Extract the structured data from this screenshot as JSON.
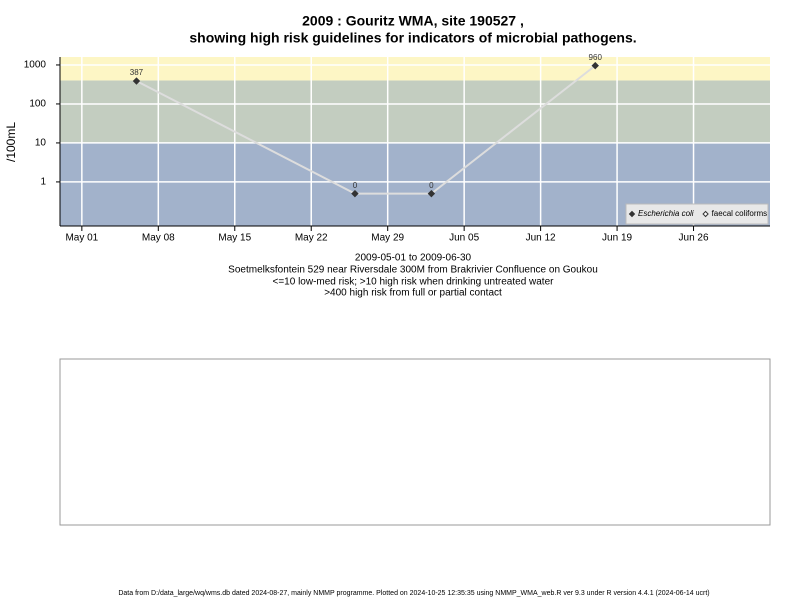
{
  "chart_data": {
    "type": "line",
    "title": "2009 : Gouritz WMA, site 190527 ,",
    "subtitle": "showing high risk guidelines for indicators of microbial pathogens.",
    "y_label": "/100mL",
    "x_label_lines": [
      "2009-05-01 to 2009-06-30",
      "Soetmelksfontein 529 near Riversdale 300M from Brakrivier Confluence on Goukou",
      "<=10 low-med risk; >10 high risk when drinking untreated water",
      ">400 high risk from full or partial contact"
    ],
    "x": [
      "2009-05-06",
      "2009-05-26",
      "2009-06-02",
      "2009-06-17"
    ],
    "series": [
      {
        "name": "Escherichia coli",
        "color": "#333333",
        "line_color": "#dddddd",
        "values": [
          387,
          0.5,
          0.5,
          960
        ],
        "value_labels": [
          "387",
          "0",
          "0",
          "960"
        ]
      },
      {
        "name": "faecal coliforms",
        "color": "#ffffff",
        "line_color": "#dddddd",
        "values": [
          null,
          null,
          null,
          null
        ]
      }
    ],
    "log_scale": true,
    "ylim": [
      0.074,
      1600
    ],
    "yticks": [
      1000,
      100,
      10,
      1
    ],
    "xlim": [
      "2009-04-29",
      "2009-07-03"
    ],
    "xticks": [
      {
        "value": "2009-05-01",
        "label": "May 01"
      },
      {
        "value": "2009-05-08",
        "label": "May 08"
      },
      {
        "value": "2009-05-15",
        "label": "May 15"
      },
      {
        "value": "2009-05-22",
        "label": "May 22"
      },
      {
        "value": "2009-05-29",
        "label": "May 29"
      },
      {
        "value": "2009-06-05",
        "label": "Jun 05"
      },
      {
        "value": "2009-06-12",
        "label": "Jun 12"
      },
      {
        "value": "2009-06-19",
        "label": "Jun 19"
      },
      {
        "value": "2009-06-26",
        "label": "Jun 26"
      }
    ],
    "thresholds": [
      10,
      400
    ],
    "band_colors": [
      "#a2b2cb",
      "#c3cdc0",
      "#fdf6c5"
    ],
    "grid": true,
    "legend_position": "bottom-right"
  },
  "footer": "Data from D:/data_large/wq/wms.db dated 2024-08-27, mainly NMMP programme. Plotted on 2024-10-25 12:35:35 using NMMP_WMA_web.R ver 9.3 under R version 4.4.1 (2024-06-14 ucrt)"
}
